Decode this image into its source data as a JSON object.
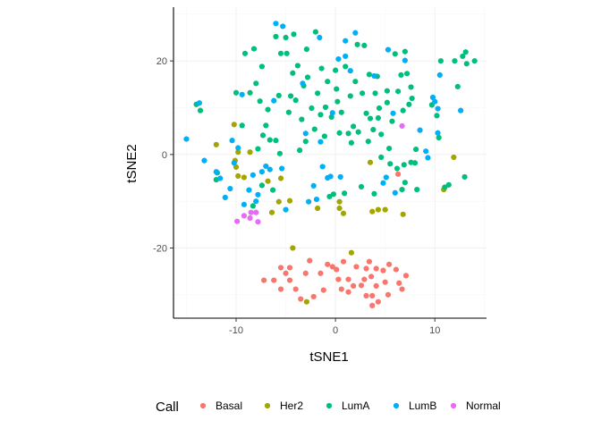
{
  "chart_data": {
    "type": "scatter",
    "xlabel": "tSNE1",
    "ylabel": "tSNE2",
    "xlim": [
      -16.3,
      15.2
    ],
    "ylim": [
      -35,
      31.5
    ],
    "x_ticks": [
      -10,
      0,
      10
    ],
    "x_tick_labels": [
      "-10",
      "0",
      "10"
    ],
    "y_ticks": [
      -20,
      0,
      20
    ],
    "y_tick_labels": [
      "-20",
      "0",
      "20"
    ],
    "x_minor": [
      -15,
      -5,
      5,
      15
    ],
    "y_minor": [
      -30,
      -10,
      10,
      30
    ],
    "grid": true,
    "legend": {
      "title": "Call",
      "position": "bottom"
    },
    "series": [
      {
        "name": "Basal",
        "color": "#F8766D",
        "points": [
          [
            -7.2,
            -26.9
          ],
          [
            -6.2,
            -26.9
          ],
          [
            -5.5,
            -24.2
          ],
          [
            -5.5,
            -28.8
          ],
          [
            -5.0,
            -25.4
          ],
          [
            -4.6,
            -24.2
          ],
          [
            -4.6,
            -26.9
          ],
          [
            -4.0,
            -28.8
          ],
          [
            -3.5,
            -30.9
          ],
          [
            -3.0,
            -25.4
          ],
          [
            -2.6,
            -22.7
          ],
          [
            -2.2,
            -30.4
          ],
          [
            -1.5,
            -25.4
          ],
          [
            -1.2,
            -29.0
          ],
          [
            -0.8,
            -23.5
          ],
          [
            -0.3,
            -24.0
          ],
          [
            0.1,
            -24.6
          ],
          [
            0.3,
            -26.7
          ],
          [
            0.6,
            -28.8
          ],
          [
            0.8,
            -22.9
          ],
          [
            1.3,
            -26.7
          ],
          [
            1.3,
            -29.4
          ],
          [
            1.8,
            -28.1
          ],
          [
            2.1,
            -24.0
          ],
          [
            2.6,
            -28.0
          ],
          [
            2.9,
            -26.7
          ],
          [
            3.1,
            -24.4
          ],
          [
            3.1,
            -30.2
          ],
          [
            3.4,
            -22.9
          ],
          [
            3.6,
            -26.1
          ],
          [
            3.7,
            -30.2
          ],
          [
            3.7,
            -32.3
          ],
          [
            4.1,
            -28.1
          ],
          [
            4.1,
            -24.4
          ],
          [
            4.3,
            -31.5
          ],
          [
            4.8,
            -24.8
          ],
          [
            5.0,
            -27.3
          ],
          [
            5.3,
            -30.0
          ],
          [
            5.4,
            -23.5
          ],
          [
            6.1,
            -24.6
          ],
          [
            6.4,
            -27.5
          ],
          [
            6.7,
            -28.8
          ],
          [
            7.1,
            -25.9
          ],
          [
            6.3,
            -4.2
          ]
        ]
      },
      {
        "name": "Her2",
        "color": "#A3A500",
        "points": [
          [
            -12.0,
            2.1
          ],
          [
            -10.2,
            6.4
          ],
          [
            -10.1,
            -1.3
          ],
          [
            -10.0,
            -2.7
          ],
          [
            -9.8,
            -4.6
          ],
          [
            -9.8,
            0.5
          ],
          [
            -9.2,
            -4.9
          ],
          [
            -8.6,
            0.5
          ],
          [
            -6.8,
            -5.7
          ],
          [
            -6.4,
            -12.4
          ],
          [
            -5.7,
            -10.1
          ],
          [
            -5.5,
            -5.1
          ],
          [
            -4.6,
            -9.9
          ],
          [
            -4.3,
            -20.0
          ],
          [
            -1.8,
            -11.5
          ],
          [
            0.4,
            -10.1
          ],
          [
            0.4,
            -11.5
          ],
          [
            0.8,
            -12.6
          ],
          [
            1.6,
            -21.0
          ],
          [
            3.5,
            -1.7
          ],
          [
            3.7,
            -12.2
          ],
          [
            4.3,
            -11.8
          ],
          [
            5.0,
            -11.8
          ],
          [
            6.8,
            -12.8
          ],
          [
            10.9,
            -7.5
          ],
          [
            11.9,
            -0.6
          ],
          [
            -2.9,
            -31.5
          ]
        ]
      },
      {
        "name": "LumA",
        "color": "#00BF7D",
        "points": [
          [
            -14.0,
            10.7
          ],
          [
            -13.6,
            9.4
          ],
          [
            -12.0,
            -5.4
          ],
          [
            -11.9,
            -3.9
          ],
          [
            -10.0,
            13.2
          ],
          [
            -9.4,
            6.2
          ],
          [
            -9.1,
            21.6
          ],
          [
            -8.6,
            13.2
          ],
          [
            -8.2,
            22.6
          ],
          [
            -8.0,
            15.2
          ],
          [
            -7.8,
            1.2
          ],
          [
            -7.6,
            11.4
          ],
          [
            -7.4,
            -6.6
          ],
          [
            -7.4,
            18.8
          ],
          [
            -7.3,
            4.1
          ],
          [
            -7.0,
            6.2
          ],
          [
            -6.8,
            9.6
          ],
          [
            -6.6,
            3.1
          ],
          [
            -6.3,
            -7.6
          ],
          [
            -6.0,
            25.2
          ],
          [
            -6.0,
            3.0
          ],
          [
            -5.7,
            12.6
          ],
          [
            -5.6,
            0.2
          ],
          [
            -5.5,
            21.6
          ],
          [
            -5.0,
            25.0
          ],
          [
            -4.9,
            21.6
          ],
          [
            -4.7,
            9.0
          ],
          [
            -4.5,
            12.5
          ],
          [
            -4.3,
            17.4
          ],
          [
            -4.2,
            25.7
          ],
          [
            -4.0,
            11.6
          ],
          [
            -3.8,
            19.0
          ],
          [
            -3.6,
            0.9
          ],
          [
            -3.4,
            7.5
          ],
          [
            -3.2,
            14.7
          ],
          [
            -3.0,
            2.8
          ],
          [
            -2.9,
            22.5
          ],
          [
            -2.8,
            16.5
          ],
          [
            -2.4,
            9.9
          ],
          [
            -2.1,
            5.4
          ],
          [
            -2.0,
            26.2
          ],
          [
            -1.8,
            13.1
          ],
          [
            -1.5,
            8.5
          ],
          [
            -1.4,
            18.4
          ],
          [
            -1.1,
            3.9
          ],
          [
            -1.0,
            10.1
          ],
          [
            -0.8,
            15.6
          ],
          [
            -0.6,
            -9.0
          ],
          [
            -0.4,
            8.0
          ],
          [
            -0.2,
            -8.5
          ],
          [
            0.0,
            18.0
          ],
          [
            0.1,
            14.0
          ],
          [
            0.2,
            11.3
          ],
          [
            0.4,
            4.6
          ],
          [
            0.6,
            9.0
          ],
          [
            0.9,
            -8.3
          ],
          [
            1.0,
            18.8
          ],
          [
            1.3,
            4.5
          ],
          [
            1.5,
            12.5
          ],
          [
            1.6,
            2.5
          ],
          [
            1.8,
            6.0
          ],
          [
            2.0,
            15.6
          ],
          [
            2.2,
            23.5
          ],
          [
            2.3,
            4.8
          ],
          [
            2.6,
            -6.9
          ],
          [
            2.7,
            13.1
          ],
          [
            2.9,
            23.3
          ],
          [
            3.1,
            8.8
          ],
          [
            3.3,
            2.8
          ],
          [
            3.4,
            17.1
          ],
          [
            3.5,
            7.7
          ],
          [
            3.8,
            5.3
          ],
          [
            3.9,
            -8.4
          ],
          [
            4.0,
            13.1
          ],
          [
            4.2,
            16.7
          ],
          [
            4.3,
            7.8
          ],
          [
            4.4,
            9.9
          ],
          [
            4.6,
            4.3
          ],
          [
            4.6,
            -0.6
          ],
          [
            5.2,
            11.1
          ],
          [
            5.2,
            13.6
          ],
          [
            5.4,
            1.3
          ],
          [
            5.5,
            -2.0
          ],
          [
            5.7,
            7.1
          ],
          [
            6.0,
            21.5
          ],
          [
            6.2,
            -3.0
          ],
          [
            6.3,
            13.5
          ],
          [
            6.6,
            17.0
          ],
          [
            6.7,
            -7.5
          ],
          [
            6.8,
            9.4
          ],
          [
            6.9,
            -2.2
          ],
          [
            7.0,
            22.0
          ],
          [
            7.0,
            -6.0
          ],
          [
            7.2,
            17.3
          ],
          [
            7.4,
            10.7
          ],
          [
            7.6,
            14.4
          ],
          [
            7.7,
            12.0
          ],
          [
            8.0,
            -1.8
          ],
          [
            8.1,
            1.1
          ],
          [
            8.2,
            -7.5
          ],
          [
            9.7,
            10.6
          ],
          [
            10.2,
            8.3
          ],
          [
            10.4,
            3.6
          ],
          [
            10.6,
            20.0
          ],
          [
            11.0,
            -7.0
          ],
          [
            11.4,
            -6.5
          ],
          [
            12.0,
            20.0
          ],
          [
            12.3,
            14.5
          ],
          [
            12.8,
            21.0
          ],
          [
            13.0,
            -4.8
          ],
          [
            13.1,
            21.9
          ],
          [
            13.2,
            19.4
          ],
          [
            14.0,
            20.0
          ],
          [
            -8.3,
            -11.0
          ],
          [
            7.6,
            -1.7
          ]
        ]
      },
      {
        "name": "LumB",
        "color": "#00B0F6",
        "points": [
          [
            -15.0,
            3.3
          ],
          [
            -13.7,
            11.0
          ],
          [
            -13.2,
            -1.3
          ],
          [
            -12.0,
            -3.7
          ],
          [
            -11.6,
            -5.1
          ],
          [
            -11.1,
            -9.2
          ],
          [
            -10.6,
            -7.3
          ],
          [
            -10.4,
            3.0
          ],
          [
            -10.2,
            -1.8
          ],
          [
            -9.8,
            1.4
          ],
          [
            -9.4,
            12.8
          ],
          [
            -9.2,
            -10.7
          ],
          [
            -8.7,
            -7.6
          ],
          [
            -8.3,
            -4.4
          ],
          [
            -8.0,
            -10.0
          ],
          [
            -7.8,
            -8.6
          ],
          [
            -7.4,
            -3.7
          ],
          [
            -7.0,
            -2.5
          ],
          [
            -6.6,
            -3.2
          ],
          [
            -6.2,
            11.5
          ],
          [
            -6.0,
            28.0
          ],
          [
            -5.4,
            -3.0
          ],
          [
            -5.3,
            27.4
          ],
          [
            -5.0,
            -11.8
          ],
          [
            -3.3,
            15.2
          ],
          [
            -3.0,
            4.5
          ],
          [
            -2.7,
            -10.1
          ],
          [
            -2.2,
            -6.7
          ],
          [
            -1.9,
            -9.6
          ],
          [
            -1.6,
            25.0
          ],
          [
            -1.5,
            2.7
          ],
          [
            -1.3,
            -2.6
          ],
          [
            -0.8,
            -5.0
          ],
          [
            -0.5,
            -4.7
          ],
          [
            -0.3,
            8.9
          ],
          [
            0.3,
            20.4
          ],
          [
            0.5,
            -4.8
          ],
          [
            1.0,
            21.0
          ],
          [
            1.0,
            24.3
          ],
          [
            1.5,
            17.9
          ],
          [
            2.0,
            26.0
          ],
          [
            3.9,
            16.8
          ],
          [
            4.8,
            -6.1
          ],
          [
            5.1,
            -4.9
          ],
          [
            5.3,
            22.4
          ],
          [
            5.8,
            8.8
          ],
          [
            6.0,
            -8.2
          ],
          [
            7.0,
            20.1
          ],
          [
            8.5,
            5.2
          ],
          [
            9.1,
            0.7
          ],
          [
            9.3,
            -0.7
          ],
          [
            9.8,
            12.2
          ],
          [
            10.0,
            11.3
          ],
          [
            10.3,
            9.8
          ],
          [
            10.3,
            4.6
          ],
          [
            10.5,
            17.0
          ],
          [
            12.6,
            9.4
          ]
        ]
      },
      {
        "name": "Normal",
        "color": "#E76BF3",
        "points": [
          [
            -9.9,
            -14.3
          ],
          [
            -9.2,
            -13.1
          ],
          [
            -8.6,
            -13.6
          ],
          [
            -8.5,
            -12.4
          ],
          [
            -8.0,
            -12.4
          ],
          [
            -7.8,
            -14.4
          ],
          [
            6.7,
            6.1
          ]
        ]
      }
    ]
  }
}
